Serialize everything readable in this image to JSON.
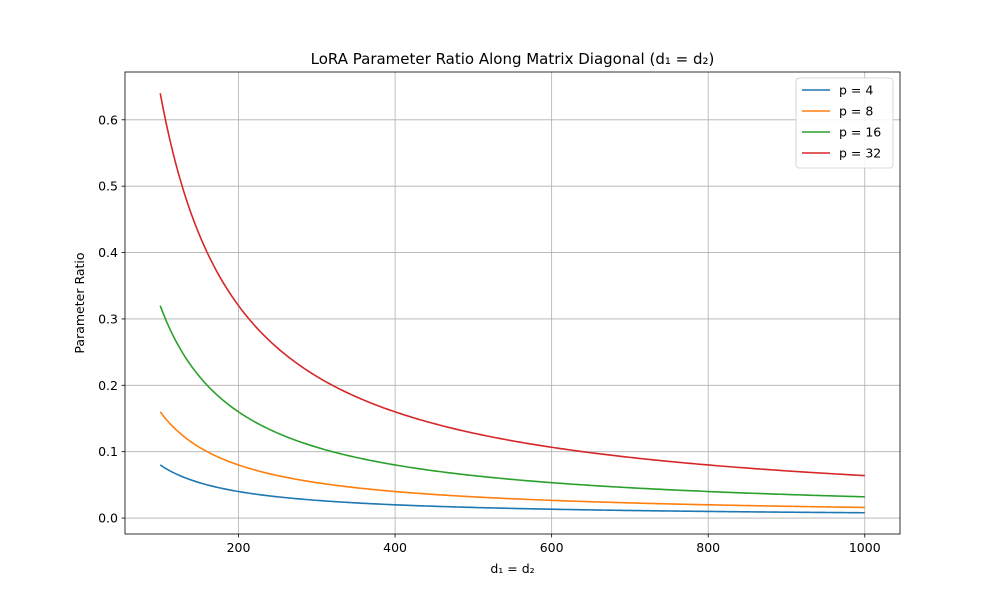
{
  "chart_data": {
    "type": "line",
    "title": "LoRA Parameter Ratio Along Matrix Diagonal (d₁ = d₂)",
    "xlabel": "d₁ = d₂",
    "ylabel": "Parameter Ratio",
    "xlim": [
      55,
      1045
    ],
    "ylim": [
      -0.024,
      0.672
    ],
    "x_ticks": [
      200,
      400,
      600,
      800,
      1000
    ],
    "y_ticks": [
      0.0,
      0.1,
      0.2,
      0.3,
      0.4,
      0.5,
      0.6
    ],
    "y_tick_labels": [
      "0.0",
      "0.1",
      "0.2",
      "0.3",
      "0.4",
      "0.5",
      "0.6"
    ],
    "grid": true,
    "legend_position": "top-right",
    "x_range": [
      100,
      1000
    ],
    "formula": "ratio = 2 * p / d",
    "series": [
      {
        "name": "p = 4",
        "p": 4,
        "color": "#1f77b4"
      },
      {
        "name": "p = 8",
        "p": 8,
        "color": "#ff7f0e"
      },
      {
        "name": "p = 16",
        "p": 16,
        "color": "#2ca02c"
      },
      {
        "name": "p = 32",
        "p": 32,
        "color": "#d62728"
      }
    ]
  }
}
